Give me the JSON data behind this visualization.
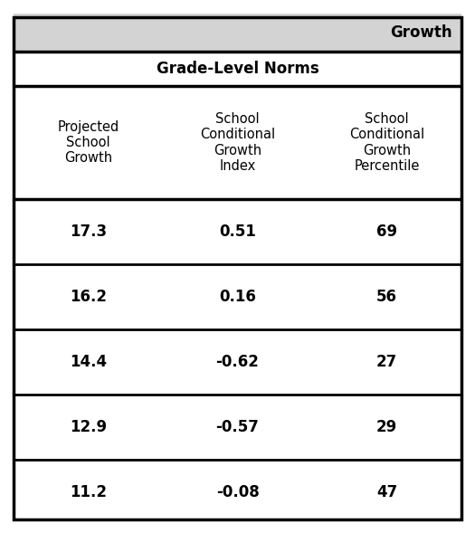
{
  "title_bar_text": "Growth",
  "title_bar_bg": "#d3d3d3",
  "section_header": "Grade-Level Norms",
  "col_headers": [
    "Projected\nSchool\nGrowth",
    "School\nConditional\nGrowth\nIndex",
    "School\nConditional\nGrowth\nPercentile"
  ],
  "rows": [
    [
      "17.3",
      "0.51",
      "69"
    ],
    [
      "16.2",
      "0.16",
      "56"
    ],
    [
      "14.4",
      "-0.62",
      "27"
    ],
    [
      "12.9",
      "-0.57",
      "29"
    ],
    [
      "11.2",
      "-0.08",
      "47"
    ]
  ],
  "outer_border_color": "#000000",
  "title_bar_bg_color": "#d3d3d3",
  "title_fontsize": 12,
  "header_fontsize": 10.5,
  "data_fontsize": 12,
  "fig_width": 5.25,
  "fig_height": 5.89
}
